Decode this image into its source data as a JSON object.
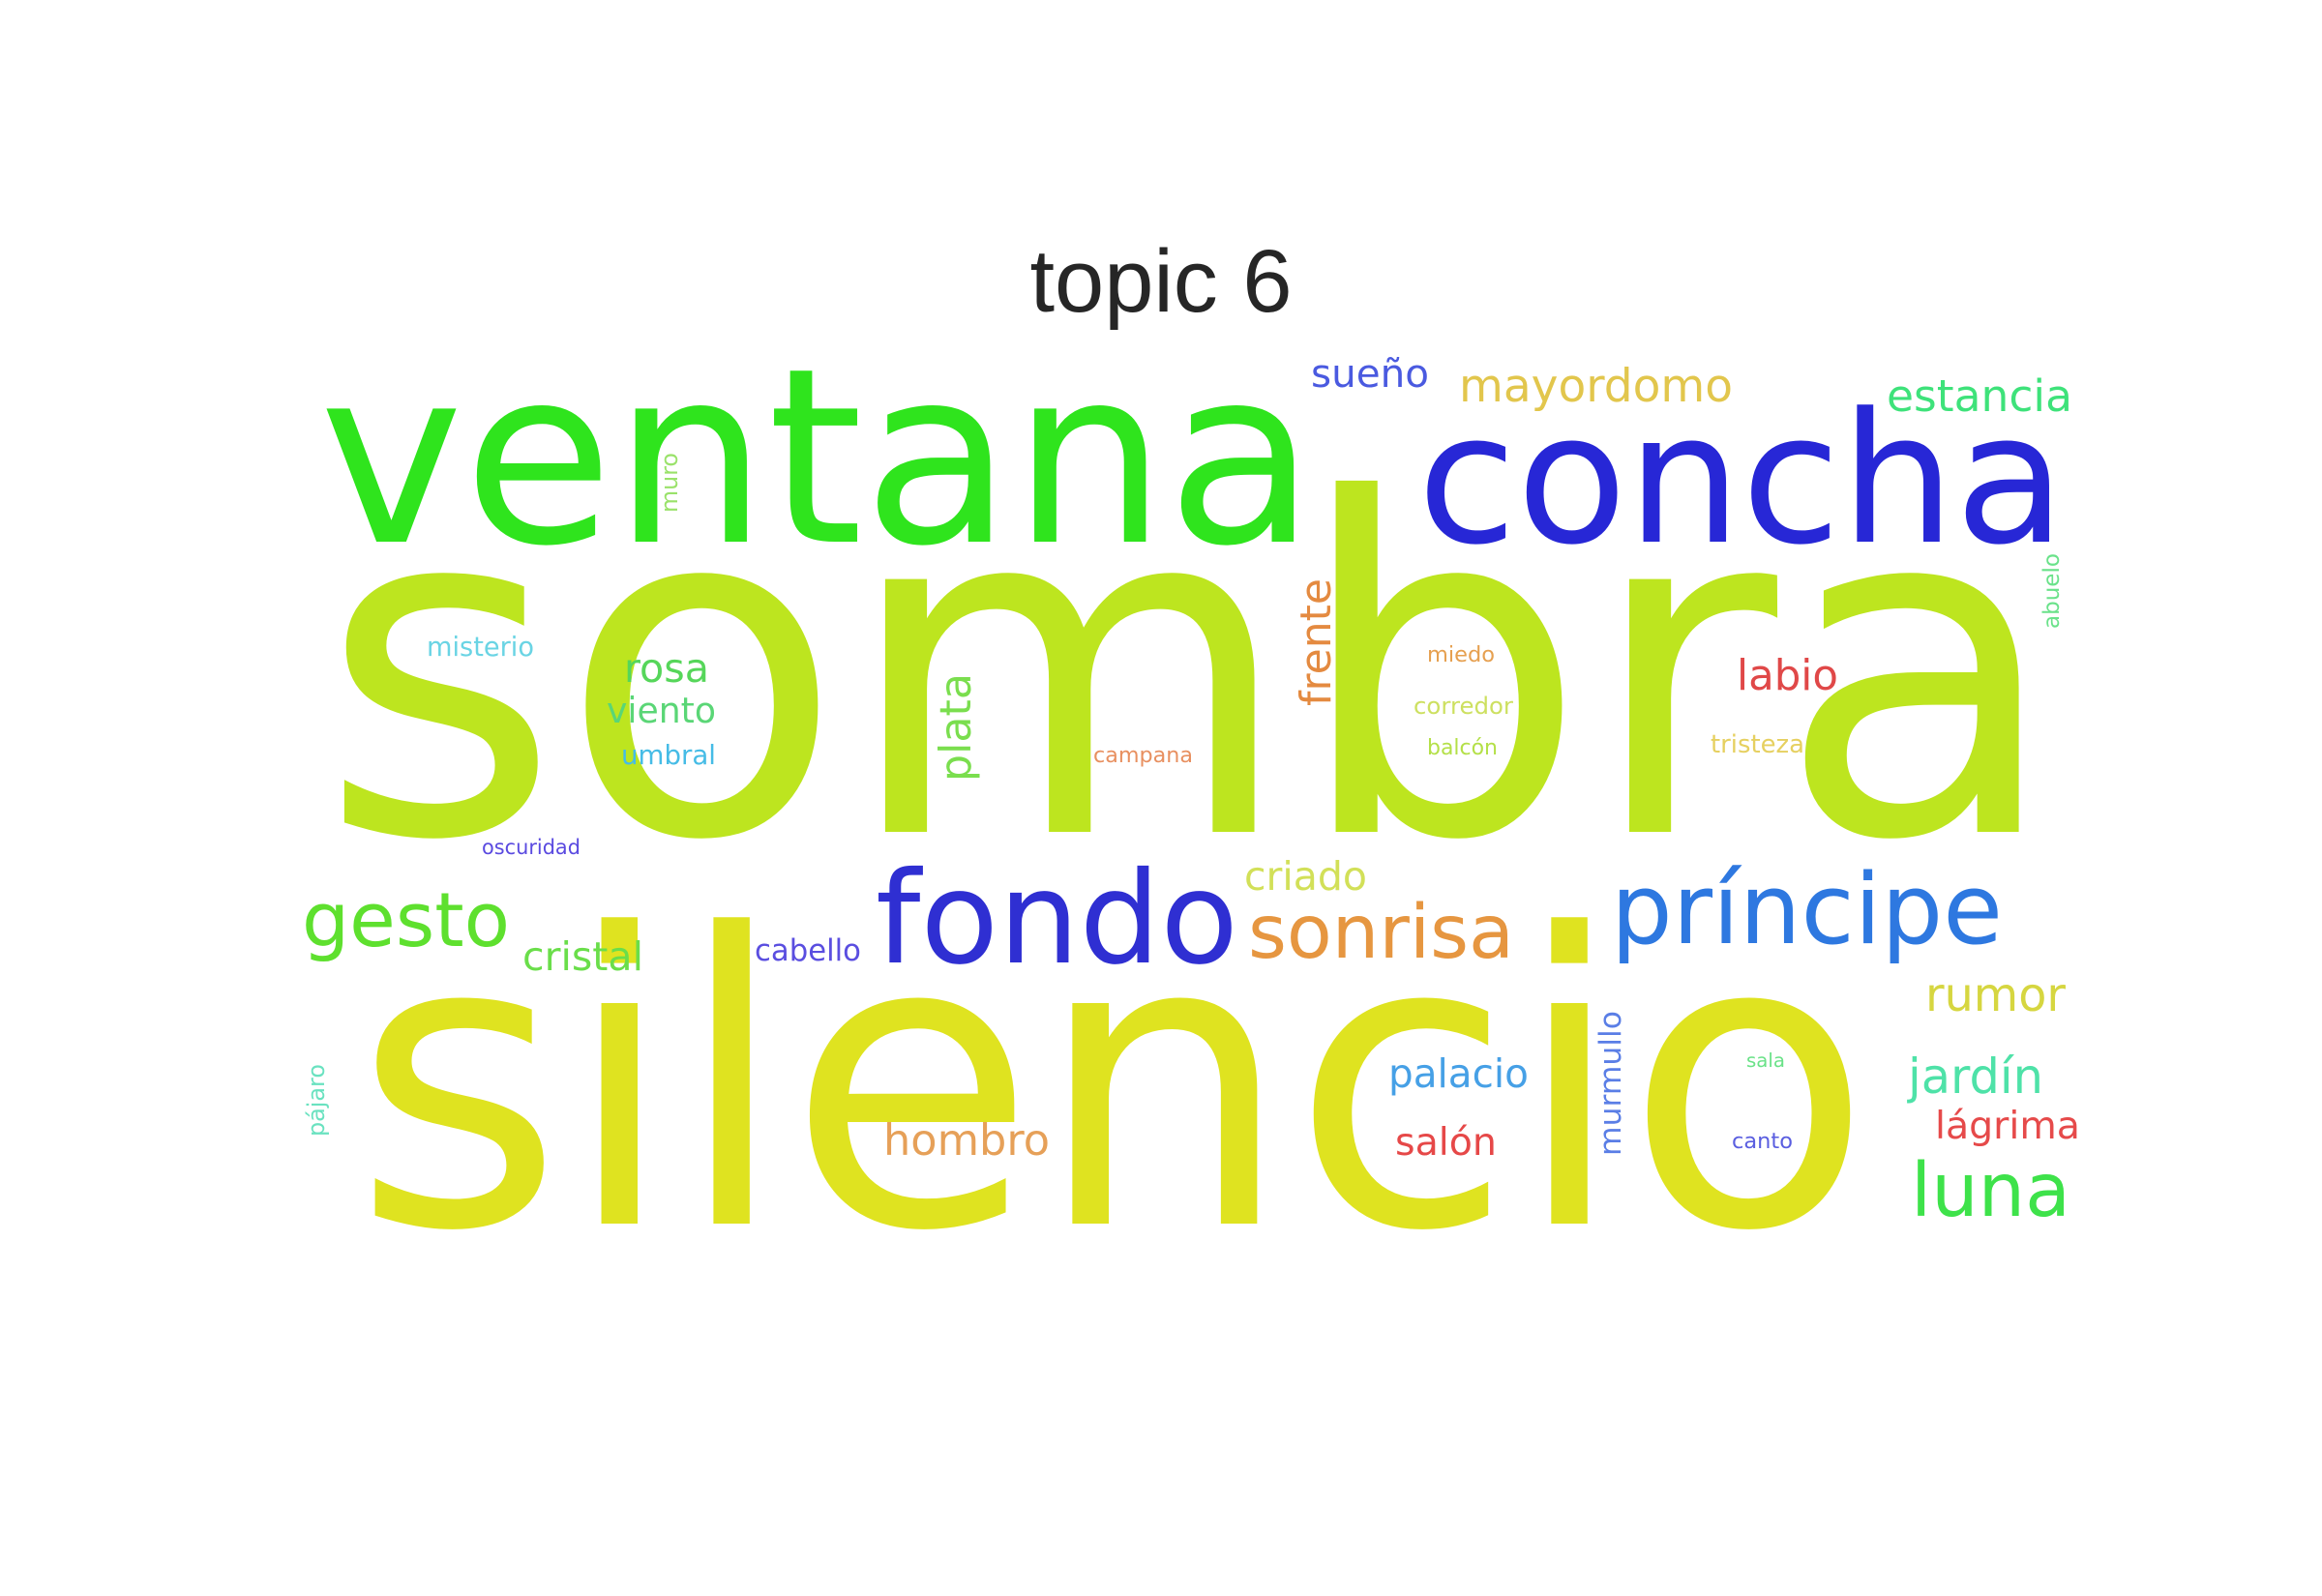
{
  "title": "topic 6",
  "words": [
    {
      "text": "sombra",
      "color": "#bde51f"
    },
    {
      "text": "silencio",
      "color": "#dfe320"
    },
    {
      "text": "ventana",
      "color": "#2fe41d"
    },
    {
      "text": "concha",
      "color": "#2727d6"
    },
    {
      "text": "fondo",
      "color": "#2f2fd2"
    },
    {
      "text": "príncipe",
      "color": "#2e78e0"
    },
    {
      "text": "sonrisa",
      "color": "#e69640"
    },
    {
      "text": "gesto",
      "color": "#5ee02e"
    },
    {
      "text": "luna",
      "color": "#3ee24a"
    },
    {
      "text": "mayordomo",
      "color": "#e2c64c"
    },
    {
      "text": "estancia",
      "color": "#3ee27a"
    },
    {
      "text": "sueño",
      "color": "#4a5ae0"
    },
    {
      "text": "labio",
      "color": "#e04848"
    },
    {
      "text": "rosa",
      "color": "#56d65a"
    },
    {
      "text": "viento",
      "color": "#5ad676"
    },
    {
      "text": "umbral",
      "color": "#46bce6"
    },
    {
      "text": "misterio",
      "color": "#6ad4e4"
    },
    {
      "text": "plata",
      "color": "#7ade4e"
    },
    {
      "text": "frente",
      "color": "#e48a40"
    },
    {
      "text": "miedo",
      "color": "#e6a050"
    },
    {
      "text": "corredor",
      "color": "#cde060"
    },
    {
      "text": "balcón",
      "color": "#b4e048"
    },
    {
      "text": "tristeza",
      "color": "#e6d060"
    },
    {
      "text": "campana",
      "color": "#e89060"
    },
    {
      "text": "oscuridad",
      "color": "#5a4ae0"
    },
    {
      "text": "criado",
      "color": "#d2e058"
    },
    {
      "text": "cristal",
      "color": "#6ade4a"
    },
    {
      "text": "cabello",
      "color": "#5a4ee0"
    },
    {
      "text": "rumor",
      "color": "#d6d640"
    },
    {
      "text": "palacio",
      "color": "#46a0e6"
    },
    {
      "text": "hombro",
      "color": "#e6a058"
    },
    {
      "text": "salón",
      "color": "#e64848"
    },
    {
      "text": "murmullo",
      "color": "#5a7ee6"
    },
    {
      "text": "jardín",
      "color": "#4ee2a8"
    },
    {
      "text": "lágrima",
      "color": "#e64a4a"
    },
    {
      "text": "sala",
      "color": "#6ae288"
    },
    {
      "text": "canto",
      "color": "#5a5ee0"
    },
    {
      "text": "pájaro",
      "color": "#6ae2c0"
    },
    {
      "text": "muro",
      "color": "#9ae26a"
    },
    {
      "text": "abuelo",
      "color": "#6ae28a"
    }
  ]
}
